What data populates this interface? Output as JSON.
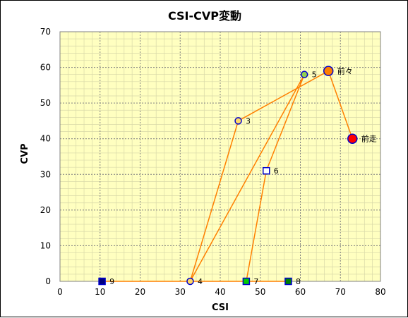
{
  "chart_data": {
    "type": "scatter",
    "title": "CSI-CVP変動",
    "xlabel": "CSI",
    "ylabel": "CVP",
    "xlim": [
      0,
      80
    ],
    "ylim": [
      0,
      70
    ],
    "x_ticks": [
      0,
      10,
      20,
      30,
      40,
      50,
      60,
      70,
      80
    ],
    "y_ticks": [
      0,
      10,
      20,
      30,
      40,
      50,
      60,
      70
    ],
    "grid": true,
    "colors": {
      "plot_background": "#FFFFC0",
      "major_grid": "#808080",
      "minor_grid": "#D8D8A8",
      "line": "#FF7F00"
    },
    "points": [
      {
        "label": "前走",
        "x": 73,
        "y": 40,
        "marker": "circle",
        "size": "large",
        "fill": "#FF0000",
        "stroke": "#0000CC"
      },
      {
        "label": "前々",
        "x": 67,
        "y": 59,
        "marker": "circle",
        "size": "large",
        "fill": "#FF7F00",
        "stroke": "#0000CC"
      },
      {
        "label": "3",
        "x": 44.5,
        "y": 45,
        "marker": "circle",
        "size": "small",
        "fill": "#FFD966",
        "stroke": "#0000CC"
      },
      {
        "label": "4",
        "x": 32.5,
        "y": 0,
        "marker": "circle",
        "size": "small",
        "fill": "#FFD966",
        "stroke": "#0000CC"
      },
      {
        "label": "5",
        "x": 61,
        "y": 58,
        "marker": "circle",
        "size": "small",
        "fill": "#92D050",
        "stroke": "#0000CC"
      },
      {
        "label": "6",
        "x": 51.5,
        "y": 31,
        "marker": "square",
        "size": "small",
        "fill": "#FFFFFF",
        "stroke": "#0000CC"
      },
      {
        "label": "7",
        "x": 46.5,
        "y": 0,
        "marker": "square",
        "size": "small",
        "fill": "#00CC00",
        "stroke": "#0000CC"
      },
      {
        "label": "8",
        "x": 57,
        "y": 0,
        "marker": "square",
        "size": "small",
        "fill": "#008000",
        "stroke": "#0000CC"
      },
      {
        "label": "9",
        "x": 10.5,
        "y": 0,
        "marker": "square",
        "size": "small",
        "fill": "#000080",
        "stroke": "#0000CC"
      }
    ]
  }
}
